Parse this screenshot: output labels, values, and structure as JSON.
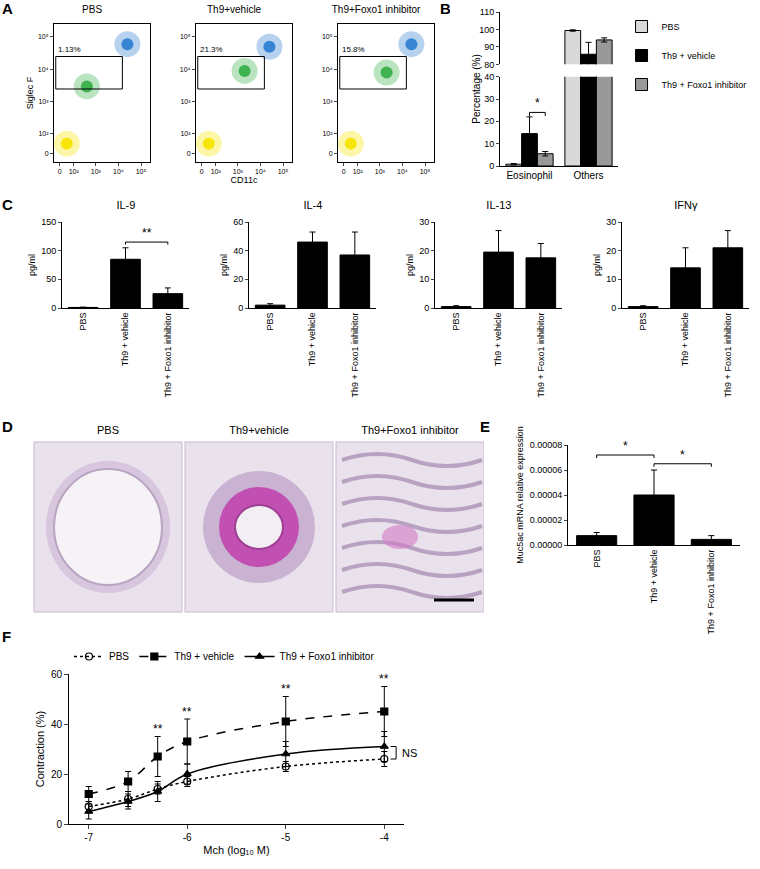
{
  "chart_data": [
    {
      "panel": "A",
      "type": "flow",
      "xlabel": "CD11c",
      "ylabel": "Siglec F",
      "xlim": [
        -30,
        250000
      ],
      "ylim": [
        -30,
        250000
      ],
      "xticks": [
        0,
        {
          "value": 100,
          "label": "10²"
        },
        {
          "value": 1000,
          "label": "10³"
        },
        {
          "value": 10000,
          "label": "10⁴"
        },
        {
          "value": 100000,
          "label": "10⁵"
        }
      ],
      "yticks": [
        0,
        {
          "value": 100,
          "label": "10²"
        },
        {
          "value": 1000,
          "label": "10³"
        },
        {
          "value": 10000,
          "label": "10⁴"
        },
        {
          "value": 100000,
          "label": "10⁵"
        }
      ],
      "plots": [
        {
          "title": "PBS",
          "gate": {
            "x": [
              -20,
              15000
            ],
            "y": [
              2500,
              25000
            ],
            "label": "1.13%"
          },
          "populations": {
            "x": [
              40,
              25000,
              400
            ],
            "y": [
              40,
              60000,
              3000
            ],
            "colors": [
              "#f5e400",
              "#2f7fd0",
              "#38b04a"
            ]
          }
        },
        {
          "title": "Th9+vehicle",
          "gate": {
            "x": [
              -20,
              15000
            ],
            "y": [
              2500,
              25000
            ],
            "label": "21.3%"
          },
          "populations": {
            "x": [
              40,
              2000,
              25000
            ],
            "y": [
              40,
              9000,
              50000
            ],
            "colors": [
              "#f5e400",
              "#38b04a",
              "#2f7fd0"
            ]
          }
        },
        {
          "title": "Th9+Foxo1 inhibitor",
          "gate": {
            "x": [
              -20,
              15000
            ],
            "y": [
              2500,
              25000
            ],
            "label": "15.8%"
          },
          "populations": {
            "x": [
              40,
              2000,
              25000
            ],
            "y": [
              40,
              8000,
              60000
            ],
            "colors": [
              "#f5e400",
              "#38b04a",
              "#2f7fd0"
            ]
          }
        }
      ]
    },
    {
      "panel": "B",
      "type": "bar",
      "ylabel": "Percentage (%)",
      "categories": [
        "Eosinophil",
        "Others"
      ],
      "series": [
        {
          "name": "PBS",
          "color": "#d9d9d9",
          "values": [
            0.8,
            99.4
          ],
          "error": [
            0.3,
            0.4
          ]
        },
        {
          "name": "Th9 + vehicle",
          "color": "#000000",
          "values": [
            14.5,
            85.8
          ],
          "error": [
            7.5,
            6.8
          ]
        },
        {
          "name": "Th9 + Foxo1 inhibitor",
          "color": "#999999",
          "values": [
            5.5,
            94
          ],
          "error": [
            1.0,
            1.2
          ]
        }
      ],
      "segments": [
        {
          "ylim": [
            80,
            110
          ],
          "yticks": [
            80,
            90,
            100,
            110
          ]
        },
        {
          "ylim": [
            0,
            40
          ],
          "yticks": [
            0,
            10,
            20,
            30,
            40
          ]
        }
      ],
      "legend": "right",
      "annotations": [
        {
          "text": "*",
          "category": 0,
          "series": [
            1,
            2
          ],
          "y": 24
        }
      ]
    },
    {
      "panel": "C",
      "type": "bar",
      "ylabel": "pg/ml",
      "categories": [
        "PBS",
        "Th9 + vehicle",
        "Th9 + Foxo1 inhibitor"
      ],
      "color": "#000000",
      "charts": [
        {
          "title": "IL-9",
          "values": [
            1,
            85,
            25
          ],
          "error": [
            0.5,
            20,
            10
          ],
          "ylim": [
            0,
            150
          ],
          "yticks": [
            0,
            50,
            100,
            150
          ],
          "annotations": [
            {
              "text": "**",
              "between": [
                1,
                2
              ],
              "y": 115
            }
          ]
        },
        {
          "title": "IL-4",
          "values": [
            2,
            46,
            37
          ],
          "error": [
            1,
            7,
            16
          ],
          "ylim": [
            0,
            60
          ],
          "yticks": [
            0,
            20,
            40,
            60
          ],
          "annotations": []
        },
        {
          "title": "IL-13",
          "values": [
            0.5,
            19.5,
            17.5
          ],
          "error": [
            0.3,
            7.5,
            5
          ],
          "ylim": [
            0,
            30
          ],
          "yticks": [
            0,
            10,
            20,
            30
          ],
          "annotations": []
        },
        {
          "title": "IFNγ",
          "values": [
            0.5,
            14,
            21
          ],
          "error": [
            0.3,
            7,
            6
          ],
          "ylim": [
            0,
            30
          ],
          "yticks": [
            0,
            10,
            20,
            30
          ],
          "annotations": []
        }
      ]
    },
    {
      "panel": "E",
      "type": "bar",
      "ylabel": "Muc5ac mRNA relative expression",
      "categories": [
        "PBS",
        "Th9 + vehicle",
        "Th9 + Foxo1 inhibitor"
      ],
      "color": "#000000",
      "values": [
        7.5e-06,
        4e-05,
        4.5e-06
      ],
      "error": [
        2.5e-06,
        2e-05,
        3e-06
      ],
      "ylim": [
        0,
        8e-05
      ],
      "yticks": [
        {
          "value": 0,
          "label": "0.00000"
        },
        2e-05,
        4e-05,
        6e-05,
        8e-05
      ],
      "annotations": [
        {
          "text": "*",
          "between": [
            0,
            1
          ],
          "y": 7.2e-05
        },
        {
          "text": "*",
          "between": [
            1,
            2
          ],
          "y": 6.5e-05
        }
      ]
    },
    {
      "panel": "F",
      "type": "line",
      "xlabel": "Mch (log₁₀ M)",
      "ylabel": "Contraction (%)",
      "xlim": [
        -7.2,
        -3.8
      ],
      "xticks": [
        -7,
        -6,
        -5,
        -4
      ],
      "ylim": [
        0,
        60
      ],
      "yticks": [
        0,
        20,
        40,
        60
      ],
      "x": [
        -7,
        -6.6,
        -6.3,
        -6,
        -5,
        -4
      ],
      "series": [
        {
          "name": "PBS",
          "color": "#000000",
          "marker": "circle-open",
          "line_style": "dot",
          "values": [
            7,
            10,
            14,
            17,
            23,
            26
          ],
          "error": [
            2,
            3,
            2,
            2,
            2,
            3
          ]
        },
        {
          "name": "Th9 + vehicle",
          "color": "#000000",
          "marker": "square",
          "line_style": "dash",
          "values": [
            12,
            17,
            27,
            33,
            41,
            45
          ],
          "error": [
            3,
            4,
            8,
            9,
            10,
            10
          ]
        },
        {
          "name": "Th9 + Foxo1 inhibitor",
          "color": "#000000",
          "marker": "triangle-up",
          "line_style": "solid",
          "values": [
            5,
            9,
            13,
            20,
            28,
            31
          ],
          "error": [
            3,
            3,
            4,
            4,
            5,
            6
          ]
        }
      ],
      "legend": "top",
      "annotations": [
        {
          "text": "**",
          "x": -6.3,
          "y": 38
        },
        {
          "text": "**",
          "x": -6,
          "y": 45
        },
        {
          "text": "**",
          "x": -5,
          "y": 54
        },
        {
          "text": "**",
          "x": -4,
          "y": 58
        }
      ],
      "brackets": [
        {
          "text": "NS",
          "x": -3.88,
          "y": [
            26,
            31
          ]
        }
      ]
    }
  ],
  "panel_d": {
    "panel": "D",
    "images": [
      {
        "title": "PBS"
      },
      {
        "title": "Th9+vehicle"
      },
      {
        "title": "Th9+Foxo1 inhibitor"
      }
    ]
  }
}
